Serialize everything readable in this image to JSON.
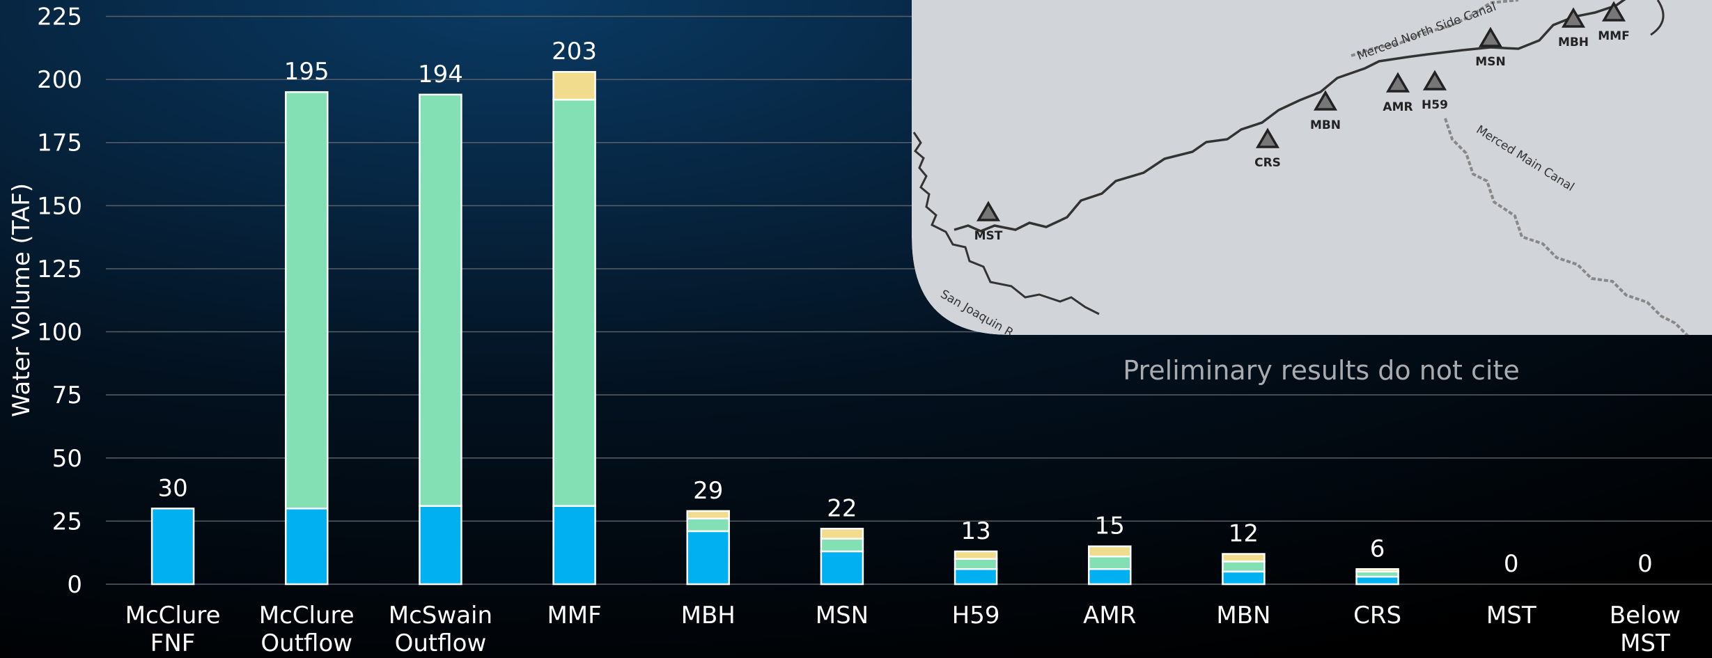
{
  "chart_data": {
    "type": "stacked_bar",
    "y_label": "Water Volume (TAF)",
    "categories": [
      "McClure FNF",
      "McClure Outflow",
      "McSwain Outflow",
      "MMF",
      "MBH",
      "MSN",
      "H59",
      "AMR",
      "MBN",
      "CRS",
      "MST",
      "Below MST"
    ],
    "series": [
      {
        "color": "#00b0f0",
        "values": [
          30,
          30,
          31,
          31,
          21,
          13,
          6,
          6,
          5,
          3,
          0,
          0
        ]
      },
      {
        "color": "#82e0b4",
        "values": [
          0,
          165,
          163,
          161,
          5,
          5,
          4,
          5,
          4,
          2,
          0,
          0
        ]
      },
      {
        "color": "#f0dc8c",
        "values": [
          0,
          0,
          0,
          11,
          3,
          4,
          3,
          4,
          3,
          1,
          0,
          0
        ]
      }
    ],
    "totals": [
      30,
      195,
      194,
      203,
      29,
      22,
      13,
      15,
      12,
      6,
      0,
      0
    ],
    "ylim": [
      0,
      225
    ],
    "yticks": [
      0,
      25,
      50,
      75,
      100,
      125,
      150,
      175,
      200,
      225
    ],
    "grid": true,
    "annotations": [
      "Preliminary results do not cite"
    ],
    "map_labels": [
      "MST",
      "CRS",
      "MBN",
      "AMR",
      "H59",
      "MSN",
      "MBH",
      "MMF",
      "Merced North Side Canal",
      "Merced Main Canal",
      "San Joaquin R"
    ]
  }
}
